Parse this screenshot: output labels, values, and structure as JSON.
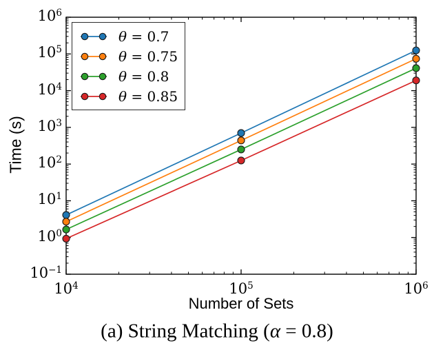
{
  "figure_caption": {
    "full": "(a) String Matching (α = 0.8)",
    "pre": "(a) String Matching (",
    "symbol": "α",
    "post": " = 0.8)"
  },
  "chart_data": {
    "type": "line",
    "title": "",
    "xlabel": "Number of Sets",
    "ylabel": "Time (s)",
    "xscale": "log",
    "yscale": "log",
    "xlim": [
      10000,
      1000000
    ],
    "ylim": [
      0.1,
      1000000
    ],
    "x_tick_exponents": [
      4,
      5,
      6
    ],
    "y_tick_exponents": [
      -1,
      0,
      1,
      2,
      3,
      4,
      5,
      6
    ],
    "grid": false,
    "legend_position": "upper left",
    "x": [
      10000,
      100000,
      1000000
    ],
    "series": [
      {
        "name": "θ = 0.7",
        "symbol": "θ",
        "value": "0.7",
        "color": "#1f77b4",
        "values": [
          4.1,
          700,
          125000
        ]
      },
      {
        "name": "θ = 0.75",
        "symbol": "θ",
        "value": "0.75",
        "color": "#ff7f0e",
        "values": [
          2.7,
          440,
          74000
        ]
      },
      {
        "name": "θ = 0.8",
        "symbol": "θ",
        "value": "0.8",
        "color": "#2ca02c",
        "values": [
          1.65,
          250,
          41000
        ]
      },
      {
        "name": "θ = 0.85",
        "symbol": "θ",
        "value": "0.85",
        "color": "#d62728",
        "values": [
          0.93,
          125,
          19000
        ]
      }
    ],
    "marker": "circle",
    "marker_edge_color": "#1a1a1a",
    "axis_color": "#000000"
  }
}
